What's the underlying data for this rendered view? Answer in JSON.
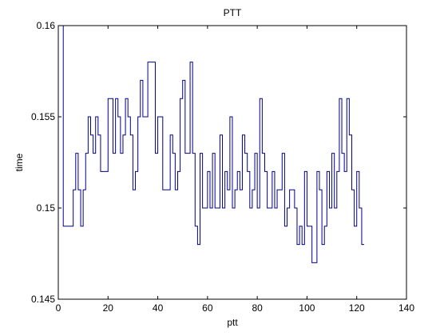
{
  "chart_data": {
    "type": "line",
    "title": "PTT",
    "xlabel": "ptt",
    "ylabel": "time",
    "xlim": [
      0,
      140
    ],
    "ylim": [
      0.145,
      0.16
    ],
    "xticks": [
      0,
      20,
      40,
      60,
      80,
      100,
      120,
      140
    ],
    "yticks": [
      0.145,
      0.15,
      0.155,
      0.16
    ],
    "xtick_labels": [
      "0",
      "20",
      "40",
      "60",
      "80",
      "100",
      "120",
      "140"
    ],
    "ytick_labels": [
      "0.145",
      "0.15",
      "0.155",
      "0.16"
    ],
    "grid": false,
    "step": true,
    "series_color": "#00008B",
    "series": [
      {
        "x": [
          0,
          1,
          2,
          3,
          4,
          5,
          6,
          7,
          8,
          9,
          10,
          11,
          12,
          13,
          14,
          15,
          16,
          17,
          18,
          19,
          20,
          21,
          22,
          23,
          24,
          25,
          26,
          27,
          28,
          29,
          30,
          31,
          32,
          33,
          34,
          35,
          36,
          37,
          38,
          39,
          40,
          41,
          42,
          43,
          44,
          45,
          46,
          47,
          48,
          49,
          50,
          51,
          52,
          53,
          54,
          55,
          56,
          57,
          58,
          59,
          60,
          61,
          62,
          63,
          64,
          65,
          66,
          67,
          68,
          69,
          70,
          71,
          72,
          73,
          74,
          75,
          76,
          77,
          78,
          79,
          80,
          81,
          82,
          83,
          84,
          85,
          86,
          87,
          88,
          89,
          90,
          91,
          92,
          93,
          94,
          95,
          96,
          97,
          98,
          99,
          100,
          101,
          102,
          103,
          104,
          105,
          106,
          107,
          108,
          109,
          110,
          111,
          112,
          113,
          114,
          115,
          116,
          117,
          118,
          119,
          120,
          121,
          122,
          123
        ],
        "values": [
          0.16,
          0.16,
          0.149,
          0.149,
          0.149,
          0.149,
          0.151,
          0.153,
          0.151,
          0.149,
          0.151,
          0.153,
          0.155,
          0.154,
          0.153,
          0.155,
          0.154,
          0.152,
          0.152,
          0.152,
          0.156,
          0.156,
          0.153,
          0.156,
          0.155,
          0.153,
          0.154,
          0.156,
          0.155,
          0.154,
          0.151,
          0.152,
          0.155,
          0.157,
          0.155,
          0.155,
          0.158,
          0.158,
          0.158,
          0.153,
          0.155,
          0.155,
          0.151,
          0.151,
          0.151,
          0.154,
          0.153,
          0.151,
          0.152,
          0.156,
          0.157,
          0.153,
          0.153,
          0.158,
          0.153,
          0.149,
          0.148,
          0.153,
          0.15,
          0.15,
          0.152,
          0.15,
          0.153,
          0.15,
          0.15,
          0.154,
          0.15,
          0.152,
          0.151,
          0.155,
          0.15,
          0.151,
          0.152,
          0.151,
          0.154,
          0.153,
          0.152,
          0.15,
          0.151,
          0.153,
          0.15,
          0.156,
          0.153,
          0.152,
          0.15,
          0.15,
          0.152,
          0.15,
          0.151,
          0.151,
          0.153,
          0.149,
          0.15,
          0.151,
          0.151,
          0.15,
          0.148,
          0.149,
          0.148,
          0.152,
          0.149,
          0.149,
          0.147,
          0.147,
          0.152,
          0.151,
          0.148,
          0.149,
          0.152,
          0.15,
          0.153,
          0.15,
          0.152,
          0.156,
          0.153,
          0.152,
          0.156,
          0.154,
          0.151,
          0.149,
          0.152,
          0.15,
          0.148,
          0.148
        ]
      }
    ]
  }
}
